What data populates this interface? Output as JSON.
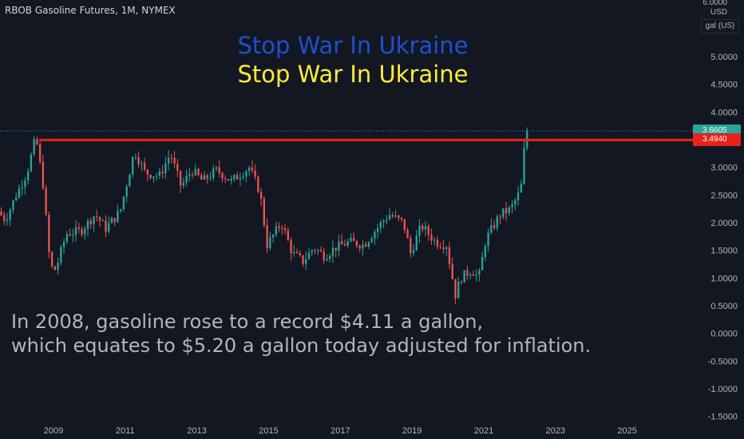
{
  "header": {
    "symbol_title": "RBOB Gasoline Futures, 1M, NYMEX"
  },
  "overlay": {
    "slogan_line1": "Stop War In Ukraine",
    "slogan_line2": "Stop War In Ukraine",
    "slogan_color1": "#1f4fd1",
    "slogan_color2": "#ffeb3b",
    "annotation_line1": "In 2008, gasoline rose to a record $4.11 a gallon,",
    "annotation_line2": "which equates to $5.20 a gallon today adjusted for inflation."
  },
  "price_axis": {
    "currency": "USD",
    "unit": "gal (US)",
    "top_tick": "6.0000"
  },
  "colors": {
    "background": "#131722",
    "up": "#26a69a",
    "down": "#ef5350",
    "resistance": "#e8221d",
    "current_price_badge": "#26a69a",
    "resistance_badge": "#e8221d"
  },
  "chart_data": {
    "type": "candlestick",
    "title": "RBOB Gasoline Futures, 1M, NYMEX",
    "interval": "1M",
    "y_ticks": [
      "5.0000",
      "4.5000",
      "4.0000",
      "3.5000",
      "3.0000",
      "2.5000",
      "2.0000",
      "1.5000",
      "1.0000",
      "0.5000",
      "0.0000",
      "-0.5000",
      "-1.0000",
      "-1.5000"
    ],
    "y_tick_values": [
      5.0,
      4.5,
      4.0,
      3.5,
      3.0,
      2.5,
      2.0,
      1.5,
      1.0,
      0.5,
      0.0,
      -0.5,
      -1.0,
      -1.5
    ],
    "x_ticks": [
      "2009",
      "2011",
      "2013",
      "2015",
      "2017",
      "2019",
      "2021",
      "2023",
      "2025"
    ],
    "x_tick_years": [
      2009,
      2011,
      2013,
      2015,
      2017,
      2019,
      2021,
      2023,
      2025
    ],
    "ylim": [
      -1.5,
      6.0
    ],
    "xlim": [
      2007.5,
      2026.9
    ],
    "current_price": 3.6605,
    "current_price_label": "3.6605",
    "resistance_level": 3.494,
    "resistance_label": "3.4940",
    "resistance_start": 2008.6,
    "grid": false,
    "anchors": [
      [
        2007.5,
        2.2
      ],
      [
        2007.7,
        2.05
      ],
      [
        2008.0,
        2.5
      ],
      [
        2008.3,
        2.9
      ],
      [
        2008.55,
        3.55
      ],
      [
        2008.75,
        2.7
      ],
      [
        2008.95,
        1.2
      ],
      [
        2009.1,
        1.15
      ],
      [
        2009.4,
        1.8
      ],
      [
        2009.8,
        1.85
      ],
      [
        2010.2,
        2.15
      ],
      [
        2010.5,
        1.9
      ],
      [
        2010.9,
        2.2
      ],
      [
        2011.3,
        3.3
      ],
      [
        2011.6,
        2.9
      ],
      [
        2012.0,
        2.85
      ],
      [
        2012.3,
        3.25
      ],
      [
        2012.6,
        2.65
      ],
      [
        2012.9,
        2.95
      ],
      [
        2013.2,
        2.75
      ],
      [
        2013.6,
        2.95
      ],
      [
        2014.0,
        2.75
      ],
      [
        2014.5,
        3.0
      ],
      [
        2014.8,
        2.55
      ],
      [
        2015.0,
        1.6
      ],
      [
        2015.4,
        2.0
      ],
      [
        2015.7,
        1.45
      ],
      [
        2016.0,
        1.3
      ],
      [
        2016.3,
        1.55
      ],
      [
        2016.6,
        1.4
      ],
      [
        2016.9,
        1.55
      ],
      [
        2017.3,
        1.65
      ],
      [
        2017.7,
        1.6
      ],
      [
        2018.0,
        1.85
      ],
      [
        2018.4,
        2.15
      ],
      [
        2018.8,
        2.0
      ],
      [
        2019.0,
        1.45
      ],
      [
        2019.3,
        1.95
      ],
      [
        2019.7,
        1.65
      ],
      [
        2020.0,
        1.6
      ],
      [
        2020.25,
        0.7
      ],
      [
        2020.4,
        1.0
      ],
      [
        2020.7,
        1.15
      ],
      [
        2020.9,
        1.0
      ],
      [
        2021.1,
        1.7
      ],
      [
        2021.5,
        2.15
      ],
      [
        2021.8,
        2.25
      ],
      [
        2022.0,
        2.5
      ],
      [
        2022.1,
        2.7
      ],
      [
        2022.2,
        3.6
      ]
    ]
  }
}
